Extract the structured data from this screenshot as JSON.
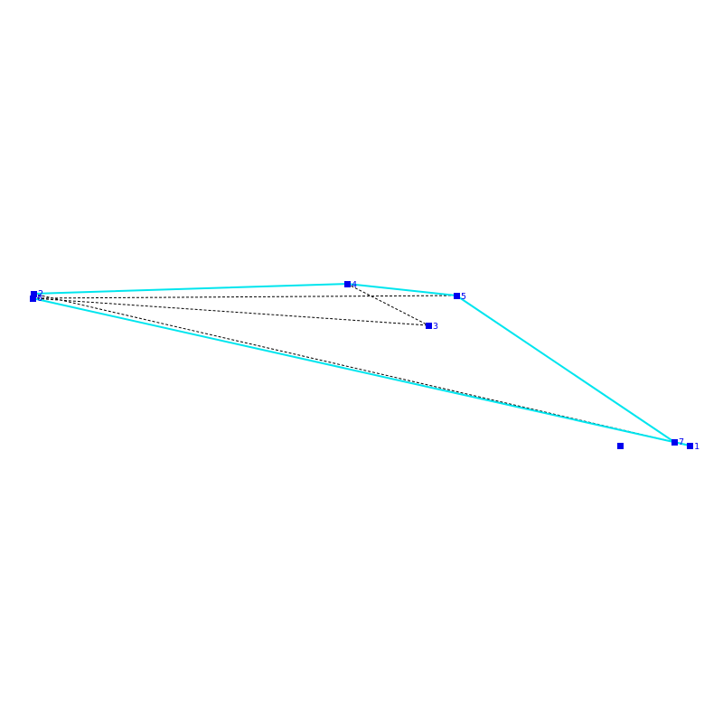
{
  "diagram": {
    "colors": {
      "hull_edge": "#00e5ee",
      "dashed_edge": "#000000",
      "vertex": "#0000ee",
      "label": "#0000ee",
      "background": "#ffffff"
    },
    "vertices": [
      {
        "id": "p1",
        "label": "1"
      },
      {
        "id": "p2",
        "label": "2"
      },
      {
        "id": "p3",
        "label": "3"
      },
      {
        "id": "p4",
        "label": "4"
      },
      {
        "id": "p5",
        "label": "5"
      },
      {
        "id": "p6",
        "label": "6"
      },
      {
        "id": "p7",
        "label": "7"
      },
      {
        "id": "p8",
        "label": ""
      }
    ],
    "hull_edges": [
      [
        "p2",
        "p4"
      ],
      [
        "p4",
        "p5"
      ],
      [
        "p5",
        "p7"
      ],
      [
        "p7",
        "p1"
      ],
      [
        "p1",
        "p6"
      ],
      [
        "p6",
        "p2"
      ]
    ],
    "dashed_edges": [
      [
        "p6",
        "p5"
      ],
      [
        "p6",
        "p3"
      ],
      [
        "p4",
        "p3"
      ],
      [
        "p6",
        "p7"
      ],
      [
        "p2",
        "p7"
      ]
    ]
  }
}
